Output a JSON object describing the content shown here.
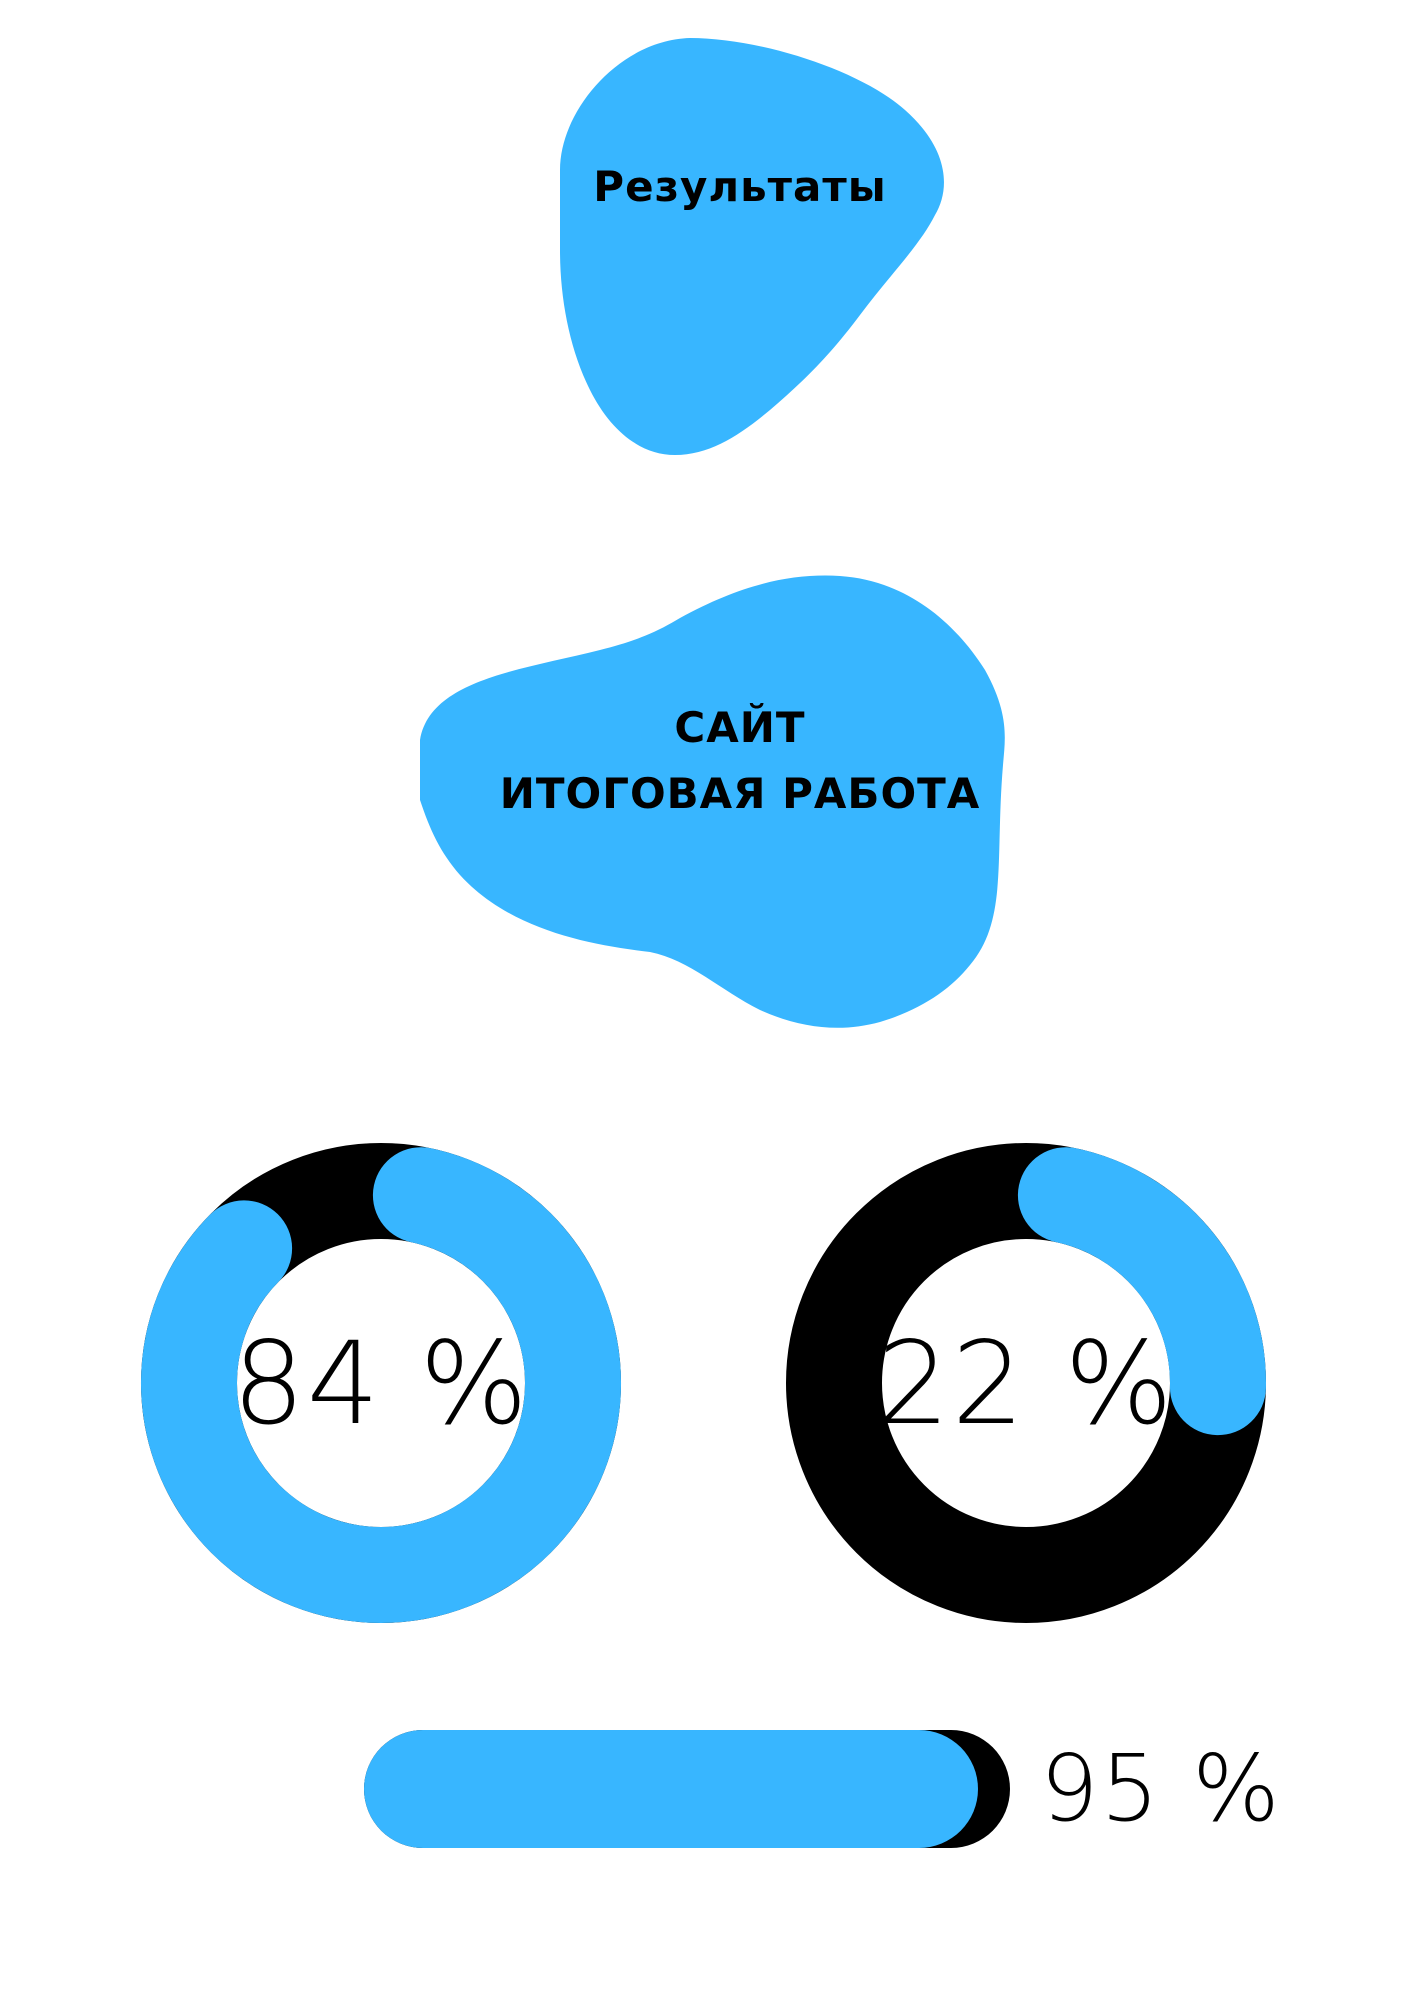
{
  "header": {
    "results_label": "Результаты",
    "site_title_line1": "САЙТ",
    "site_title_line2": "ИТОГОВАЯ РАБОТА"
  },
  "colors": {
    "accent": "#38b6ff",
    "track": "#000000",
    "text": "#000000",
    "background": "#ffffff"
  },
  "stats": {
    "ring_1": {
      "value": 84,
      "label": "84 %"
    },
    "ring_2": {
      "value": 22,
      "label": "22 %"
    },
    "bar": {
      "value": 95,
      "label": "95 %"
    }
  }
}
